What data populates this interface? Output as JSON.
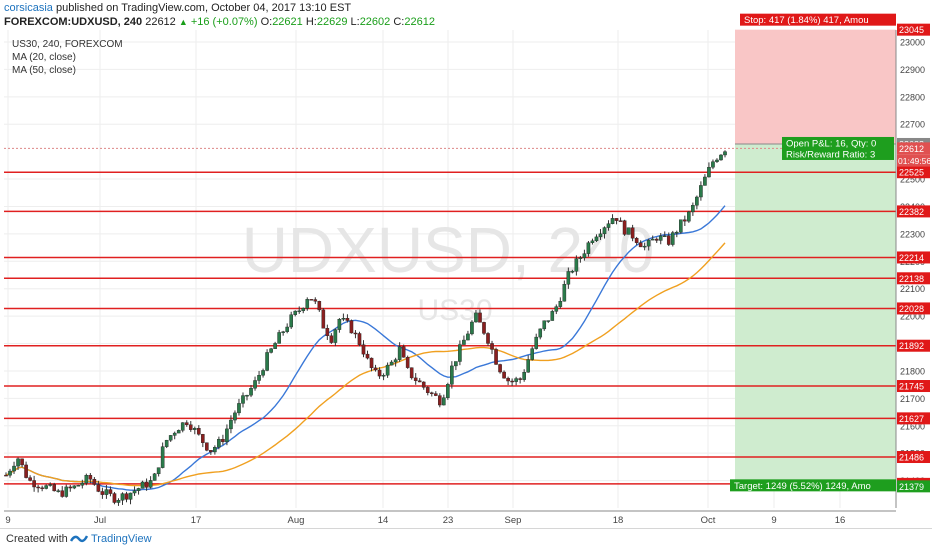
{
  "header": {
    "publisher": "corsicasia",
    "published_text": "published on TradingView.com, October 04, 2017 13:10 EST",
    "symbol": "FOREXCOM:UDXUSD, 240",
    "last": "22612",
    "change": "+16 (+0.07%)",
    "o_label": "O:",
    "o": "22621",
    "h_label": "H:",
    "h": "22629",
    "l_label": "L:",
    "l": "22602",
    "c_label": "C:",
    "c": "22612"
  },
  "legend": {
    "line1": "US30, 240, FOREXCOM",
    "line2": "MA (20, close)",
    "line3": "MA (50, close)"
  },
  "watermark": {
    "main": "UDXUSD, 240",
    "sub": "US30"
  },
  "footer": {
    "created_with": "Created with",
    "brand": "TradingView"
  },
  "chart_data": {
    "type": "candlestick",
    "ylim": [
      21300,
      23100
    ],
    "y_ticks": [
      21400,
      21500,
      21600,
      21700,
      21800,
      21900,
      22000,
      22100,
      22200,
      22300,
      22400,
      22500,
      22700,
      22800,
      22900,
      23000
    ],
    "x_ticks": [
      "9",
      "Jul",
      "17",
      "Aug",
      "14",
      "23",
      "Sep",
      "18",
      "Oct",
      "9",
      "16"
    ],
    "horizontal_levels": [
      22525,
      22382,
      22214,
      22138,
      22028,
      21892,
      21745,
      21627,
      21486,
      21388
    ],
    "level_labels": [
      "22525",
      "22382",
      "22214",
      "22138",
      "22028",
      "21892",
      "21745",
      "21627",
      "21486",
      "21388"
    ],
    "current_price": 22612,
    "current_price_label": "22612",
    "countdown_label": "01:49:56",
    "entry_price": 22628,
    "entry_label": "22628",
    "stop_price": 23045,
    "stop_label": "23045",
    "target_price": 21379,
    "target_label": "21379",
    "stop_text": "Stop: 417 (1.84%) 417, Amou",
    "target_text": "Target: 1249 (5.52%) 1249, Amo",
    "pnl_text": "Open P&L: 16, Qty: 0",
    "rr_text": "Risk/Reward Ratio: 3",
    "price_path": [
      [
        0,
        21420
      ],
      [
        0.015,
        21488
      ],
      [
        0.03,
        21400
      ],
      [
        0.05,
        21380
      ],
      [
        0.07,
        21352
      ],
      [
        0.09,
        21375
      ],
      [
        0.11,
        21410
      ],
      [
        0.125,
        21360
      ],
      [
        0.145,
        21335
      ],
      [
        0.16,
        21350
      ],
      [
        0.18,
        21380
      ],
      [
        0.195,
        21400
      ],
      [
        0.21,
        21540
      ],
      [
        0.225,
        21590
      ],
      [
        0.24,
        21620
      ],
      [
        0.255,
        21560
      ],
      [
        0.27,
        21510
      ],
      [
        0.285,
        21545
      ],
      [
        0.3,
        21640
      ],
      [
        0.315,
        21700
      ],
      [
        0.33,
        21760
      ],
      [
        0.345,
        21850
      ],
      [
        0.36,
        21920
      ],
      [
        0.375,
        21985
      ],
      [
        0.39,
        22030
      ],
      [
        0.4,
        22080
      ],
      [
        0.41,
        22040
      ],
      [
        0.42,
        21960
      ],
      [
        0.43,
        21920
      ],
      [
        0.44,
        21990
      ],
      [
        0.455,
        21960
      ],
      [
        0.47,
        21890
      ],
      [
        0.48,
        21820
      ],
      [
        0.49,
        21780
      ],
      [
        0.5,
        21800
      ],
      [
        0.51,
        21830
      ],
      [
        0.52,
        21880
      ],
      [
        0.53,
        21800
      ],
      [
        0.545,
        21760
      ],
      [
        0.56,
        21720
      ],
      [
        0.575,
        21690
      ],
      [
        0.59,
        21820
      ],
      [
        0.605,
        21910
      ],
      [
        0.62,
        22000
      ],
      [
        0.635,
        21930
      ],
      [
        0.65,
        21820
      ],
      [
        0.665,
        21760
      ],
      [
        0.68,
        21770
      ],
      [
        0.695,
        21880
      ],
      [
        0.71,
        21970
      ],
      [
        0.725,
        22020
      ],
      [
        0.745,
        22160
      ],
      [
        0.76,
        22220
      ],
      [
        0.775,
        22290
      ],
      [
        0.79,
        22330
      ],
      [
        0.805,
        22370
      ],
      [
        0.815,
        22320
      ],
      [
        0.83,
        22290
      ],
      [
        0.845,
        22250
      ],
      [
        0.86,
        22290
      ],
      [
        0.875,
        22270
      ],
      [
        0.89,
        22330
      ],
      [
        0.905,
        22380
      ],
      [
        0.92,
        22480
      ],
      [
        0.935,
        22570
      ],
      [
        0.95,
        22612
      ]
    ]
  }
}
